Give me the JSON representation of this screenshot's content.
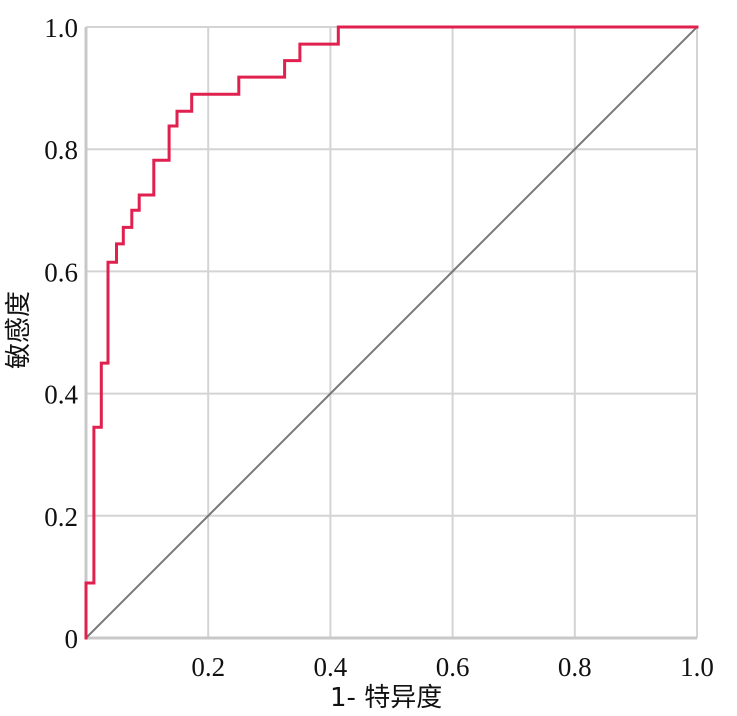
{
  "chart_data": {
    "type": "line",
    "title": "",
    "xlabel": "1- 特异度",
    "ylabel": "敏感度",
    "xlim": [
      0,
      1
    ],
    "ylim": [
      0,
      1
    ],
    "x_ticks": [
      {
        "value": 0.2,
        "label": "0.2"
      },
      {
        "value": 0.4,
        "label": "0.4"
      },
      {
        "value": 0.6,
        "label": "0.6"
      },
      {
        "value": 0.8,
        "label": "0.8"
      },
      {
        "value": 1.0,
        "label": "1.0"
      }
    ],
    "y_ticks": [
      {
        "value": 0,
        "label": "0"
      },
      {
        "value": 0.2,
        "label": "0.2"
      },
      {
        "value": 0.4,
        "label": "0.4"
      },
      {
        "value": 0.6,
        "label": "0.6"
      },
      {
        "value": 0.8,
        "label": "0.8"
      },
      {
        "value": 1.0,
        "label": "1.0"
      }
    ],
    "grid": true,
    "series": [
      {
        "role": "roc-curve",
        "color": "#e0204e",
        "points": [
          [
            0,
            0
          ],
          [
            0,
            0.09
          ],
          [
            0.013,
            0.09
          ],
          [
            0.013,
            0.345
          ],
          [
            0.025,
            0.345
          ],
          [
            0.025,
            0.45
          ],
          [
            0.036,
            0.45
          ],
          [
            0.036,
            0.615
          ],
          [
            0.05,
            0.615
          ],
          [
            0.05,
            0.645
          ],
          [
            0.061,
            0.645
          ],
          [
            0.061,
            0.672
          ],
          [
            0.075,
            0.672
          ],
          [
            0.075,
            0.7
          ],
          [
            0.087,
            0.7
          ],
          [
            0.087,
            0.725
          ],
          [
            0.111,
            0.725
          ],
          [
            0.111,
            0.782
          ],
          [
            0.136,
            0.782
          ],
          [
            0.136,
            0.838
          ],
          [
            0.149,
            0.838
          ],
          [
            0.149,
            0.862
          ],
          [
            0.173,
            0.862
          ],
          [
            0.173,
            0.89
          ],
          [
            0.25,
            0.89
          ],
          [
            0.25,
            0.918
          ],
          [
            0.325,
            0.918
          ],
          [
            0.325,
            0.945
          ],
          [
            0.35,
            0.945
          ],
          [
            0.35,
            0.972
          ],
          [
            0.413,
            0.972
          ],
          [
            0.413,
            1.0
          ],
          [
            1.0,
            1.0
          ]
        ]
      },
      {
        "role": "reference-line",
        "color": "#777777",
        "points": [
          [
            0,
            0
          ],
          [
            1,
            1
          ]
        ]
      }
    ]
  }
}
